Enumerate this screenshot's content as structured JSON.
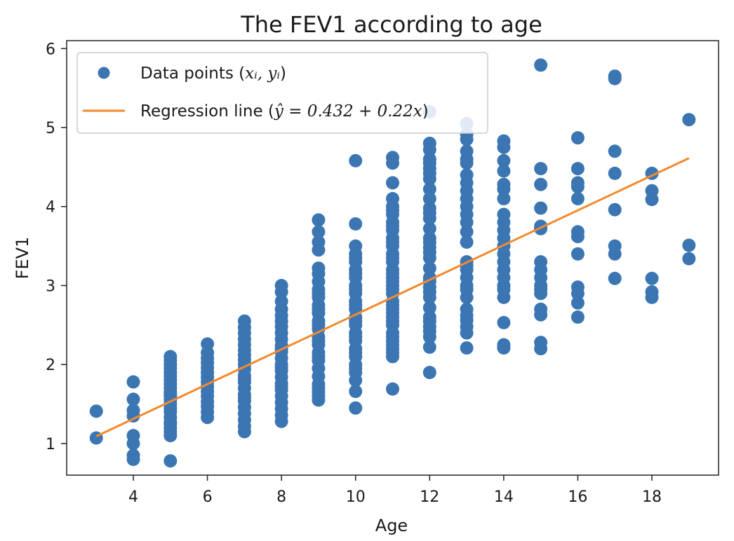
{
  "chart_data": {
    "type": "scatter",
    "title": "The FEV1 according to age",
    "xlabel": "Age",
    "ylabel": "FEV1",
    "xlim": [
      2.2,
      19.8
    ],
    "ylim": [
      0.6,
      6.1
    ],
    "xticks": [
      4,
      6,
      8,
      10,
      12,
      14,
      16,
      18
    ],
    "yticks": [
      1,
      2,
      3,
      4,
      5,
      6
    ],
    "grid": false,
    "legend_position": "top-left",
    "colors": {
      "points": "#3b76b3",
      "line": "#f28a2e"
    },
    "series": [
      {
        "name": "Data points (x_i, y_i)",
        "kind": "points",
        "legend_prefix": "Data points (",
        "legend_math": "xᵢ, yᵢ",
        "legend_suffix": ")",
        "x": [
          3,
          3,
          4,
          4,
          4,
          4,
          4,
          4,
          4,
          4,
          5,
          5,
          5,
          5,
          5,
          5,
          5,
          5,
          5,
          5,
          5,
          5,
          5,
          5,
          5,
          5,
          5,
          5,
          5,
          5,
          5,
          5,
          5,
          6,
          6,
          6,
          6,
          6,
          6,
          6,
          6,
          6,
          6,
          6,
          6,
          6,
          6,
          6,
          7,
          7,
          7,
          7,
          7,
          7,
          7,
          7,
          7,
          7,
          7,
          7,
          7,
          7,
          7,
          7,
          7,
          7,
          7,
          7,
          7,
          7,
          8,
          8,
          8,
          8,
          8,
          8,
          8,
          8,
          8,
          8,
          8,
          8,
          8,
          8,
          8,
          8,
          8,
          8,
          8,
          8,
          8,
          8,
          8,
          8,
          8,
          9,
          9,
          9,
          9,
          9,
          9,
          9,
          9,
          9,
          9,
          9,
          9,
          9,
          9,
          9,
          9,
          9,
          9,
          9,
          9,
          9,
          9,
          9,
          9,
          9,
          9,
          9,
          9,
          9,
          10,
          10,
          10,
          10,
          10,
          10,
          10,
          10,
          10,
          10,
          10,
          10,
          10,
          10,
          10,
          10,
          10,
          10,
          10,
          10,
          10,
          10,
          10,
          10,
          10,
          10,
          10,
          10,
          10,
          10,
          11,
          11,
          11,
          11,
          11,
          11,
          11,
          11,
          11,
          11,
          11,
          11,
          11,
          11,
          11,
          11,
          11,
          11,
          11,
          11,
          11,
          11,
          11,
          11,
          11,
          11,
          11,
          11,
          11,
          11,
          11,
          11,
          11,
          11,
          11,
          11,
          11,
          11,
          12,
          12,
          12,
          12,
          12,
          12,
          12,
          12,
          12,
          12,
          12,
          12,
          12,
          12,
          12,
          12,
          12,
          12,
          12,
          12,
          12,
          12,
          12,
          12,
          12,
          12,
          12,
          12,
          12,
          12,
          12,
          12,
          12,
          13,
          13,
          13,
          13,
          13,
          13,
          13,
          13,
          13,
          13,
          13,
          13,
          13,
          13,
          13,
          13,
          13,
          13,
          13,
          13,
          13,
          13,
          13,
          13,
          13,
          13,
          13,
          13,
          14,
          14,
          14,
          14,
          14,
          14,
          14,
          14,
          14,
          14,
          14,
          14,
          14,
          14,
          14,
          14,
          14,
          14,
          14,
          14,
          14,
          14,
          15,
          15,
          15,
          15,
          15,
          15,
          15,
          15,
          15,
          15,
          15,
          15,
          15,
          15,
          15,
          15,
          16,
          16,
          16,
          16,
          16,
          16,
          16,
          16,
          16,
          16,
          16,
          16,
          17,
          17,
          17,
          17,
          17,
          17,
          17,
          17,
          18,
          18,
          18,
          18,
          18,
          18,
          19,
          19,
          19
        ],
        "y": [
          1.07,
          1.41,
          0.8,
          0.85,
          1.0,
          1.1,
          1.35,
          1.42,
          1.56,
          1.78,
          0.78,
          1.1,
          1.2,
          1.27,
          1.33,
          1.4,
          1.45,
          1.5,
          1.55,
          1.6,
          1.65,
          1.7,
          1.75,
          1.8,
          1.85,
          1.9,
          1.95,
          2.0,
          2.05,
          2.1,
          1.15,
          1.25,
          1.62,
          1.33,
          1.4,
          1.47,
          1.53,
          1.6,
          1.66,
          1.72,
          1.78,
          1.84,
          1.9,
          1.96,
          2.02,
          2.08,
          2.15,
          2.26,
          1.15,
          1.22,
          1.3,
          1.38,
          1.46,
          1.54,
          1.62,
          1.7,
          1.78,
          1.86,
          1.94,
          2.0,
          2.06,
          2.12,
          2.18,
          2.25,
          2.32,
          2.4,
          2.47,
          2.55,
          1.58,
          1.82,
          1.28,
          1.36,
          1.44,
          1.52,
          1.6,
          1.68,
          1.76,
          1.84,
          1.92,
          2.0,
          2.08,
          2.16,
          2.24,
          2.32,
          2.4,
          2.48,
          2.55,
          2.62,
          2.7,
          2.8,
          2.92,
          3.0,
          1.72,
          1.96,
          2.2,
          1.55,
          1.65,
          1.75,
          1.85,
          1.95,
          2.05,
          2.15,
          2.25,
          2.35,
          2.45,
          2.55,
          2.65,
          2.75,
          2.85,
          2.95,
          3.05,
          3.15,
          3.22,
          3.45,
          3.55,
          3.68,
          3.83,
          1.6,
          1.7,
          2.1,
          2.3,
          2.5,
          2.7,
          2.9,
          1.45,
          1.66,
          1.8,
          1.9,
          2.0,
          2.1,
          2.2,
          2.3,
          2.4,
          2.5,
          2.6,
          2.7,
          2.8,
          2.9,
          3.0,
          3.1,
          3.2,
          3.3,
          3.4,
          3.5,
          3.78,
          4.58,
          1.95,
          2.15,
          2.35,
          2.55,
          2.75,
          2.95,
          3.15,
          3.35,
          1.69,
          2.1,
          2.2,
          2.3,
          2.4,
          2.5,
          2.6,
          2.7,
          2.8,
          2.9,
          3.0,
          3.1,
          3.2,
          3.3,
          3.4,
          3.5,
          3.6,
          3.7,
          3.8,
          3.9,
          4.0,
          4.1,
          4.3,
          4.55,
          4.62,
          2.15,
          2.35,
          2.55,
          2.75,
          2.95,
          3.15,
          3.35,
          3.55,
          3.75,
          3.95,
          2.25,
          2.65,
          3.05,
          1.9,
          2.22,
          2.35,
          2.48,
          2.6,
          2.72,
          2.85,
          2.98,
          3.1,
          3.22,
          3.35,
          3.48,
          3.6,
          3.72,
          3.85,
          3.98,
          4.1,
          4.22,
          4.35,
          4.48,
          4.6,
          4.72,
          4.8,
          5.2,
          2.42,
          2.55,
          2.92,
          3.05,
          3.42,
          3.55,
          3.92,
          4.42,
          4.55,
          2.21,
          2.4,
          2.48,
          2.56,
          2.7,
          2.85,
          3.0,
          3.1,
          3.2,
          3.3,
          3.55,
          3.8,
          3.9,
          4.0,
          4.1,
          4.2,
          4.3,
          4.4,
          4.55,
          4.7,
          4.85,
          4.92,
          5.05,
          2.62,
          2.95,
          3.25,
          3.68,
          4.6,
          2.21,
          2.25,
          2.53,
          2.85,
          2.95,
          3.0,
          3.1,
          3.2,
          3.3,
          3.4,
          3.5,
          3.6,
          3.7,
          3.8,
          3.9,
          4.1,
          4.22,
          4.28,
          4.45,
          4.58,
          4.75,
          4.83,
          2.2,
          2.28,
          2.63,
          2.7,
          2.9,
          3.0,
          3.1,
          3.2,
          3.3,
          3.72,
          3.75,
          3.98,
          4.28,
          4.48,
          5.79,
          2.95,
          2.6,
          2.78,
          2.9,
          2.98,
          3.4,
          3.62,
          3.68,
          4.1,
          4.25,
          4.3,
          4.48,
          4.87,
          3.09,
          3.4,
          3.5,
          3.96,
          4.42,
          4.7,
          5.62,
          5.65,
          2.85,
          2.92,
          3.09,
          4.09,
          4.2,
          4.42,
          3.34,
          3.51,
          5.1
        ]
      },
      {
        "name": "Regression line (ŷ = 0.432 + 0.22x)",
        "kind": "line",
        "legend_prefix": "Regression line (",
        "legend_math": "ŷ = 0.432 + 0.22x",
        "legend_suffix": ")",
        "x": [
          3,
          19
        ],
        "y": [
          1.092,
          4.612
        ]
      }
    ]
  }
}
